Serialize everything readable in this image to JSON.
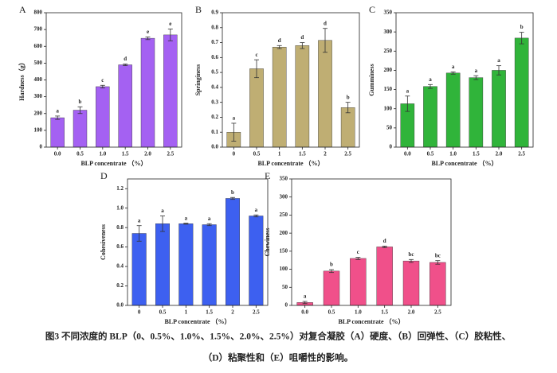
{
  "chart_data": [
    {
      "type": "bar",
      "panel": "A",
      "x_label": "BLP concentrate （%）",
      "y_label": "Hardness（g）",
      "categories": [
        "0.0",
        "0.5",
        "1.0",
        "1.5",
        "2.0",
        "2.5"
      ],
      "values": [
        175,
        220,
        360,
        490,
        648,
        668
      ],
      "errors": [
        10,
        20,
        8,
        5,
        8,
        35
      ],
      "letters": [
        "a",
        "b",
        "c",
        "d",
        "e",
        "e"
      ],
      "color": "#a461f2",
      "ylim": [
        0,
        800
      ],
      "yticks": [
        0,
        100,
        200,
        300,
        400,
        500,
        600,
        700,
        800
      ]
    },
    {
      "type": "bar",
      "panel": "B",
      "x_label": "BLP concentrate （%）",
      "y_label": "Springiness",
      "categories": [
        "0",
        "0.5",
        "1",
        "1.5",
        "2",
        "2.5"
      ],
      "values": [
        0.1,
        0.525,
        0.67,
        0.68,
        0.715,
        0.265
      ],
      "errors": [
        0.06,
        0.06,
        0.01,
        0.02,
        0.08,
        0.035
      ],
      "letters": [
        "a",
        "c",
        "d",
        "d",
        "d",
        "b"
      ],
      "color": "#bfae73",
      "ylim": [
        0,
        0.9
      ],
      "yticks": [
        {
          "value": 0,
          "label": "0.0"
        },
        0.1,
        0.2,
        0.3,
        0.4,
        0.5,
        0.6,
        0.7,
        0.8,
        0.9
      ]
    },
    {
      "type": "bar",
      "panel": "C",
      "x_label": "BLP concentrate （%）",
      "y_label": "Gumminess",
      "categories": [
        "0.0",
        "0.5",
        "1.0",
        "1.5",
        "2.0",
        "2.5"
      ],
      "values": [
        113,
        158,
        193,
        181,
        200,
        284
      ],
      "errors": [
        20,
        5,
        3,
        5,
        12,
        15
      ],
      "letters": [
        "a",
        "a",
        "a",
        "a",
        "a",
        "b"
      ],
      "color": "#30b43a",
      "ylim": [
        0,
        350
      ],
      "yticks": [
        0,
        50,
        100,
        150,
        200,
        250,
        300,
        350
      ]
    },
    {
      "type": "bar",
      "panel": "D",
      "x_label": "BLP concentrate （%）",
      "y_label": "Cohesiveness",
      "categories": [
        "0",
        "0.5",
        "1",
        "1.5",
        "2",
        "2.5"
      ],
      "values": [
        0.74,
        0.84,
        0.84,
        0.83,
        1.1,
        0.92
      ],
      "errors": [
        0.08,
        0.08,
        0.005,
        0.01,
        0.01,
        0.01
      ],
      "letters": [
        "a",
        "a",
        "a",
        "a",
        "b",
        "a"
      ],
      "color": "#3d60f0",
      "ylim": [
        0,
        1.3
      ],
      "yticks": [
        {
          "value": 0,
          "label": "0.0"
        },
        0.2,
        0.4,
        0.6,
        0.8,
        {
          "value": 1,
          "label": "1.0"
        },
        1.2
      ]
    },
    {
      "type": "bar",
      "panel": "E",
      "x_label": "BLP concentrate （%）",
      "y_label": "Chewiness",
      "categories": [
        "0.0",
        "0.5",
        "1.0",
        "1.5",
        "2.0",
        "2.5"
      ],
      "values": [
        8,
        95,
        130,
        162,
        123,
        119
      ],
      "errors": [
        3,
        4,
        3,
        2,
        4,
        5
      ],
      "letters": [
        "a",
        "b",
        "c",
        "d",
        "bc",
        "bc"
      ],
      "color": "#f0508a",
      "ylim": [
        0,
        350
      ],
      "yticks": [
        0,
        50,
        100,
        150,
        200,
        250,
        300,
        350
      ]
    }
  ],
  "caption": [
    "图3 不同浓度的 BLP（0、0.5%、1.0%、1.5%、2.0%、2.5%）对复合凝胶（A）硬度、（B）回弹性、（C）胶粘性、",
    "（D）粘聚性和（E）咀嚼性的影响。"
  ]
}
